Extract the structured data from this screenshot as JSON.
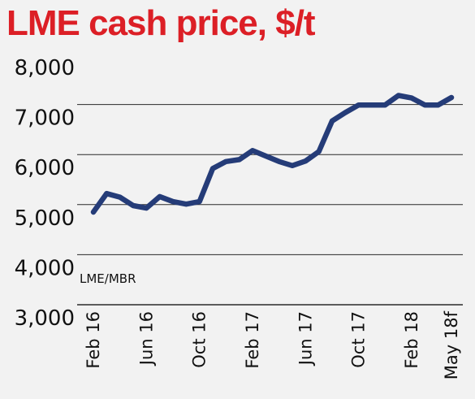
{
  "chart_data": {
    "type": "line",
    "title": "LME cash price, $/t",
    "xlabel": "",
    "ylabel": "",
    "ylim": [
      3000,
      8000
    ],
    "yticks": [
      "8,000",
      "7,000",
      "6,000",
      "5,000",
      "4,000",
      "3,000"
    ],
    "ytick_values": [
      8000,
      7000,
      6000,
      5000,
      4000,
      3000
    ],
    "xticks": [
      "Feb 16",
      "Jun 16",
      "Oct 16",
      "Feb 17",
      "Jun 17",
      "Oct 17",
      "Feb 18",
      "May 18f"
    ],
    "xtick_index": [
      0,
      4,
      8,
      12,
      16,
      20,
      24,
      27
    ],
    "source": "LME/MBR",
    "grid": true,
    "series": [
      {
        "color": "#253c78",
        "values": [
          4850,
          5220,
          5150,
          4980,
          4930,
          5160,
          5060,
          5010,
          5060,
          5720,
          5860,
          5900,
          6080,
          5970,
          5860,
          5780,
          5870,
          6060,
          6670,
          6840,
          6990,
          6990,
          6990,
          7180,
          7130,
          6990,
          6990,
          7140
        ]
      }
    ]
  }
}
